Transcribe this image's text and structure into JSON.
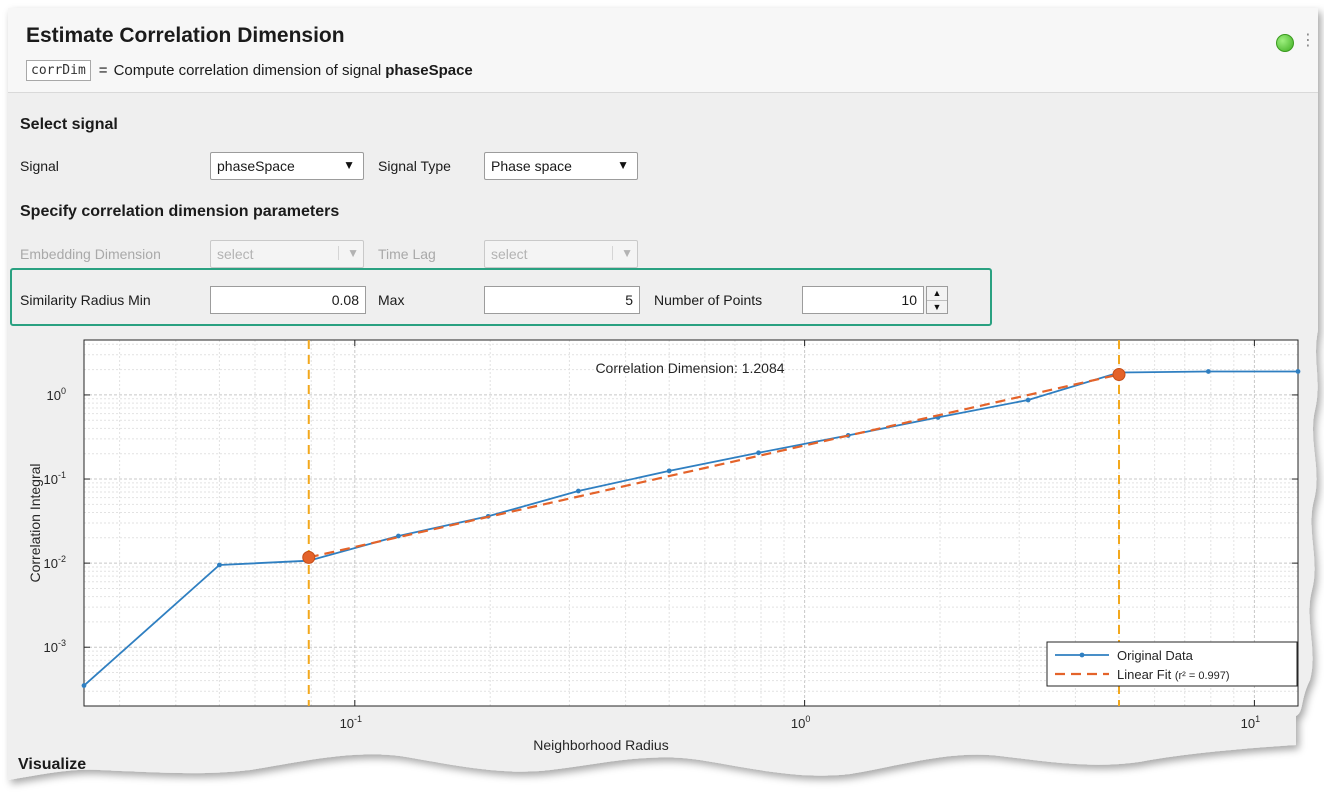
{
  "header": {
    "title": "Estimate Correlation Dimension",
    "output_var": "corrDim",
    "equals": "=",
    "summary_text": "Compute correlation dimension of signal",
    "summary_signal": "phaseSpace",
    "status_color": "#4cbb2a"
  },
  "select_signal": {
    "title": "Select signal",
    "signal_label": "Signal",
    "signal_value": "phaseSpace",
    "signal_type_label": "Signal Type",
    "signal_type_value": "Phase space"
  },
  "params": {
    "title": "Specify correlation dimension parameters",
    "embedding_label": "Embedding Dimension",
    "embedding_value": "select",
    "timelag_label": "Time Lag",
    "timelag_value": "select",
    "radius_min_label": "Similarity Radius Min",
    "radius_min_value": "0.08",
    "max_label": "Max",
    "max_value": "5",
    "num_points_label": "Number of Points",
    "num_points_value": "10"
  },
  "chart_data": {
    "type": "line",
    "annotation": "Correlation Dimension: 1.2084",
    "xlabel": "Neighborhood Radius",
    "ylabel": "Correlation Integral",
    "xscale": "log",
    "yscale": "log",
    "xlim": [
      0.025,
      12.5
    ],
    "ylim": [
      0.0002,
      4.5
    ],
    "xticks": [
      {
        "value": 0.1,
        "base": "10",
        "exp": "-1"
      },
      {
        "value": 1,
        "base": "10",
        "exp": "0"
      },
      {
        "value": 10,
        "base": "10",
        "exp": "1"
      }
    ],
    "yticks": [
      {
        "value": 0.001,
        "base": "10",
        "exp": "-3"
      },
      {
        "value": 0.01,
        "base": "10",
        "exp": "-2"
      },
      {
        "value": 0.1,
        "base": "10",
        "exp": "-1"
      },
      {
        "value": 1,
        "base": "10",
        "exp": "0"
      }
    ],
    "grid": true,
    "minor_grid": true,
    "legend_position": "bottom-right",
    "series": [
      {
        "name": "Original Data",
        "style": "solid-dot",
        "color": "#2f7fc1",
        "x": [
          0.025,
          0.05,
          0.079,
          0.125,
          0.198,
          0.314,
          0.5,
          0.79,
          1.25,
          1.98,
          3.14,
          5.0,
          7.9,
          12.5
        ],
        "y": [
          0.00035,
          0.0095,
          0.0107,
          0.021,
          0.036,
          0.072,
          0.125,
          0.205,
          0.33,
          0.54,
          0.87,
          1.85,
          1.9,
          1.9
        ]
      },
      {
        "name": "Linear Fit",
        "legend_suffix": "(r² = 0.997)",
        "style": "dashed",
        "color": "#e4632a",
        "x": [
          0.079,
          5.0
        ],
        "y": [
          0.0117,
          1.75
        ]
      }
    ],
    "range_markers": {
      "color": "#f2a81d",
      "x": [
        0.079,
        5.0
      ]
    },
    "fit_endpoints": {
      "color": "#e4632a",
      "x": [
        0.079,
        5.0
      ],
      "y": [
        0.0117,
        1.75
      ]
    }
  },
  "footer": {
    "section_partial": "Visualize"
  }
}
